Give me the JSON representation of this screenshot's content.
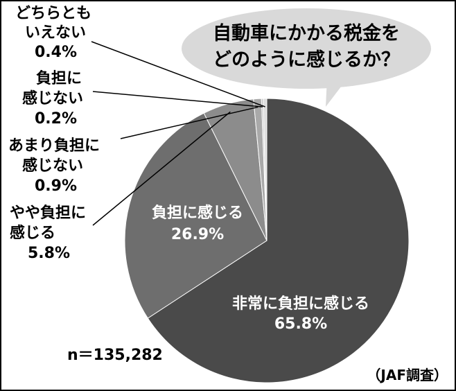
{
  "chart_data": {
    "type": "pie",
    "title": "自動車にかかる税金をどのように感じるか？",
    "title_lines": [
      "自動車にかかる税金を",
      "どのように感じるか？"
    ],
    "slices": [
      {
        "label": "非常に負担に感じる",
        "label_lines": [
          "非常に負担に感じる"
        ],
        "value": 65.8,
        "value_text": "65.8%",
        "color": "#4a4a4a",
        "label_color": "#ffffff"
      },
      {
        "label": "負担に感じる",
        "label_lines": [
          "負担に感じる"
        ],
        "value": 26.9,
        "value_text": "26.9%",
        "color": "#6e6e6e",
        "label_color": "#ffffff"
      },
      {
        "label": "やや負担に感じる",
        "label_lines": [
          "やや負担に",
          "感じる"
        ],
        "value": 5.8,
        "value_text": "5.8%",
        "color": "#8c8c8c",
        "label_color": "#000000"
      },
      {
        "label": "あまり負担に感じない",
        "label_lines": [
          "あまり負担に",
          "感じない"
        ],
        "value": 0.9,
        "value_text": "0.9%",
        "color": "#a9a9a9",
        "label_color": "#000000"
      },
      {
        "label": "負担に感じない",
        "label_lines": [
          "負担に",
          "感じない"
        ],
        "value": 0.2,
        "value_text": "0.2%",
        "color": "#c4c4c4",
        "label_color": "#000000"
      },
      {
        "label": "どちらともいえない",
        "label_lines": [
          "どちらとも",
          "いえない"
        ],
        "value": 0.4,
        "value_text": "0.4%",
        "color": "#dedede",
        "label_color": "#000000"
      }
    ],
    "sample_size": "n＝135,282",
    "source": "（JAF調査）"
  }
}
